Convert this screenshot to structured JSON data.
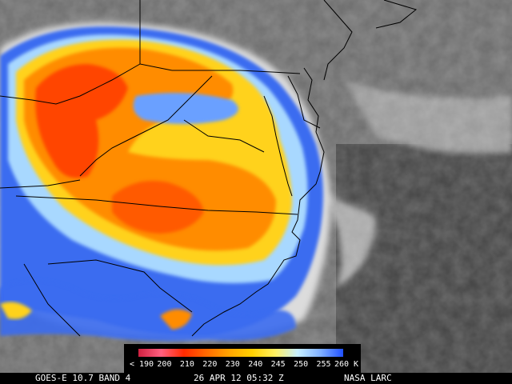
{
  "legend": {
    "ticks": [
      "< 190",
      "200",
      "210",
      "220",
      "230",
      "240",
      "245",
      "250",
      "255",
      "260 K"
    ],
    "stops": [
      "#d02040",
      "#ff6080",
      "#ff2a00",
      "#ff6a00",
      "#ffa500",
      "#ffd000",
      "#fff060",
      "#c8f0ff",
      "#80b0ff",
      "#2050ff"
    ]
  },
  "footer": {
    "satellite": "GOES-E 10.7 BAND 4",
    "datetime": "26 APR 12 05:32 Z",
    "credit": "NASA LARC"
  }
}
